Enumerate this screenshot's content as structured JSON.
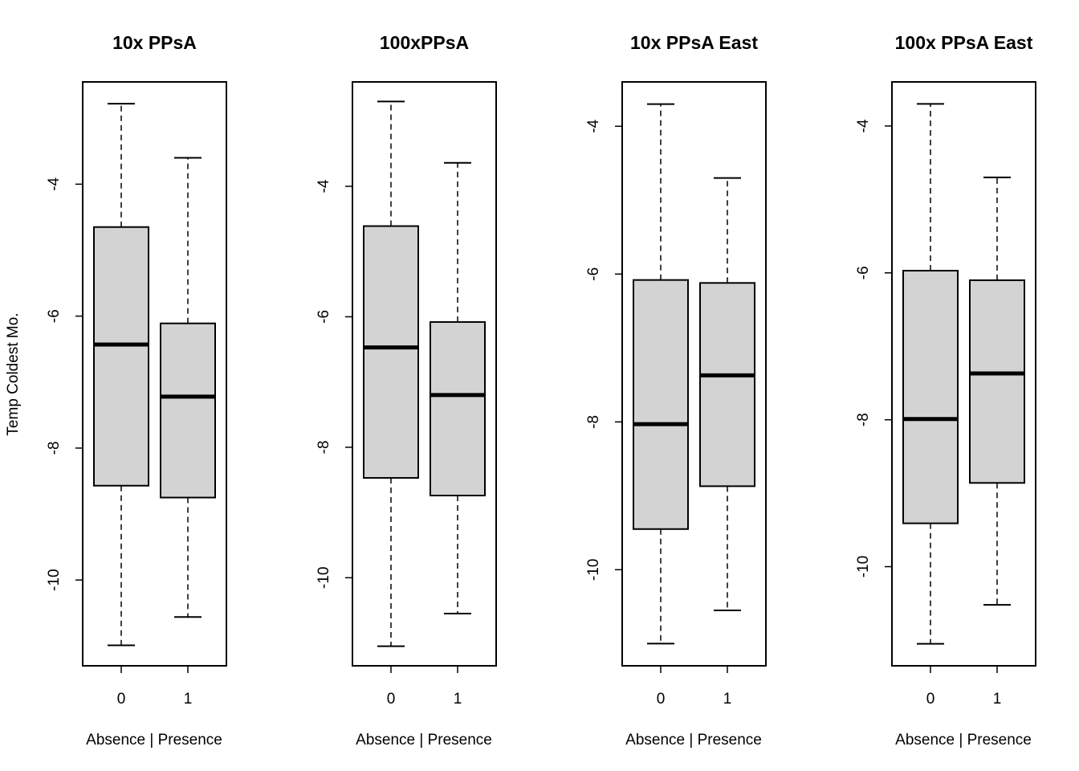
{
  "figure": {
    "ylabel": "Temp Coldest Mo.",
    "box_fill": "#d3d3d3",
    "line_color": "#000000"
  },
  "chart_data": [
    {
      "type": "boxplot",
      "title": "10x PPsA",
      "xlabel": "Absence | Presence",
      "ylabel": "Temp Coldest Mo.",
      "categories": [
        "0",
        "1"
      ],
      "ylim": [
        -11.3,
        -2.45
      ],
      "yticks": [
        -4,
        -6,
        -8,
        -10
      ],
      "boxes": [
        {
          "category": "0",
          "min": -10.99,
          "q1": -8.57,
          "median": -6.43,
          "q3": -4.65,
          "max": -2.78
        },
        {
          "category": "1",
          "min": -10.56,
          "q1": -8.75,
          "median": -7.22,
          "q3": -6.11,
          "max": -3.6
        }
      ]
    },
    {
      "type": "boxplot",
      "title": "100xPPsA",
      "xlabel": "Absence | Presence",
      "ylabel": "",
      "categories": [
        "0",
        "1"
      ],
      "ylim": [
        -11.35,
        -2.4
      ],
      "yticks": [
        -4,
        -6,
        -8,
        -10
      ],
      "boxes": [
        {
          "category": "0",
          "min": -11.05,
          "q1": -8.47,
          "median": -6.47,
          "q3": -4.61,
          "max": -2.7
        },
        {
          "category": "1",
          "min": -10.55,
          "q1": -8.74,
          "median": -7.2,
          "q3": -6.08,
          "max": -3.64
        }
      ]
    },
    {
      "type": "boxplot",
      "title": "10x PPsA East",
      "xlabel": "Absence | Presence",
      "ylabel": "",
      "categories": [
        "0",
        "1"
      ],
      "ylim": [
        -11.3,
        -3.4
      ],
      "yticks": [
        -4,
        -6,
        -8,
        -10
      ],
      "boxes": [
        {
          "category": "0",
          "min": -11.0,
          "q1": -9.45,
          "median": -8.03,
          "q3": -6.08,
          "max": -3.7
        },
        {
          "category": "1",
          "min": -10.55,
          "q1": -8.87,
          "median": -7.37,
          "q3": -6.12,
          "max": -4.7
        }
      ]
    },
    {
      "type": "boxplot",
      "title": "100x PPsA East",
      "xlabel": "Absence | Presence",
      "ylabel": "",
      "categories": [
        "0",
        "1"
      ],
      "ylim": [
        -11.35,
        -3.4
      ],
      "yticks": [
        -4,
        -6,
        -8,
        -10
      ],
      "boxes": [
        {
          "category": "0",
          "min": -11.05,
          "q1": -9.41,
          "median": -7.99,
          "q3": -5.97,
          "max": -3.7
        },
        {
          "category": "1",
          "min": -10.52,
          "q1": -8.86,
          "median": -7.37,
          "q3": -6.1,
          "max": -4.7
        }
      ]
    }
  ]
}
